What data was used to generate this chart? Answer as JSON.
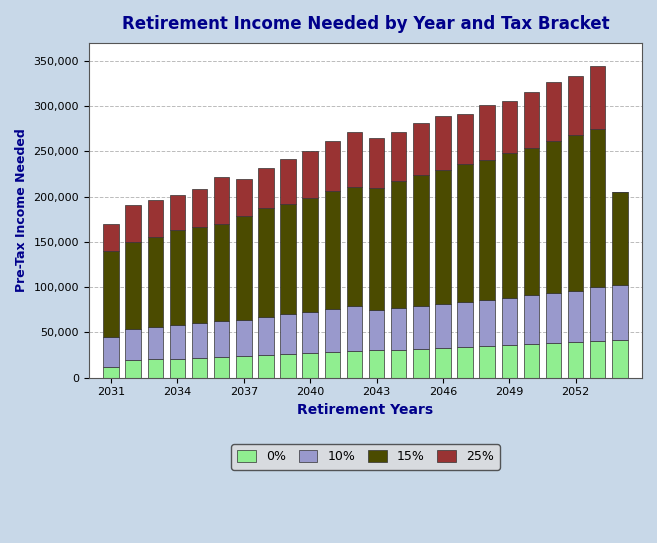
{
  "title": "Retirement Income Needed by Year and Tax Bracket",
  "xlabel": "Retirement Years",
  "ylabel": "Pre-Tax Income Needed",
  "years": [
    2031,
    2032,
    2033,
    2034,
    2035,
    2036,
    2037,
    2038,
    2039,
    2040,
    2041,
    2042,
    2043,
    2044,
    2045,
    2046,
    2047,
    2048,
    2049,
    2050,
    2051,
    2052,
    2053,
    2054
  ],
  "seg0": [
    12000,
    19000,
    20000,
    21000,
    22000,
    23000,
    24000,
    25000,
    26000,
    27000,
    28000,
    29000,
    30000,
    31000,
    32000,
    33000,
    34000,
    35000,
    36000,
    37000,
    38000,
    39000,
    40000,
    41000
  ],
  "seg10": [
    33000,
    35000,
    36000,
    37000,
    38000,
    39000,
    40000,
    42000,
    44000,
    46000,
    48000,
    50000,
    45000,
    46000,
    47000,
    48000,
    50000,
    51000,
    52000,
    54000,
    56000,
    57000,
    60000,
    61000
  ],
  "seg15": [
    95000,
    96000,
    99000,
    105000,
    107000,
    108000,
    115000,
    120000,
    122000,
    125000,
    130000,
    132000,
    135000,
    140000,
    145000,
    148000,
    152000,
    155000,
    160000,
    163000,
    168000,
    172000,
    175000,
    103000
  ],
  "seg25": [
    30000,
    41000,
    41000,
    39000,
    42000,
    52000,
    40000,
    45000,
    50000,
    52000,
    55000,
    60000,
    55000,
    55000,
    57000,
    60000,
    55000,
    60000,
    58000,
    62000,
    65000,
    65000,
    70000,
    0
  ],
  "color0": "#90EE90",
  "color10": "#9999CC",
  "color15": "#4B4B00",
  "color25": "#993333",
  "ylim": [
    0,
    370000
  ],
  "yticks": [
    0,
    50000,
    100000,
    150000,
    200000,
    250000,
    300000,
    350000
  ],
  "xtick_labels": [
    "2031",
    "2034",
    "2037",
    "2040",
    "2043",
    "2046",
    "2049",
    "2052"
  ],
  "xtick_positions": [
    2031,
    2034,
    2037,
    2040,
    2043,
    2046,
    2049,
    2052
  ],
  "background_color": "#C8D8E8",
  "plot_background": "#FFFFFF",
  "title_color": "#00008B",
  "axis_label_color": "#00008B",
  "legend_labels": [
    "0%",
    "10%",
    "15%",
    "25%"
  ],
  "bar_width": 0.7,
  "grid_color": "#AAAAAA",
  "grid_linestyle": "--"
}
